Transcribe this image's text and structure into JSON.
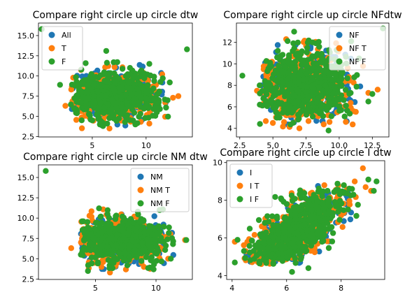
{
  "chart_data": [
    {
      "type": "scatter",
      "title": "Compare right circle up circle dtw",
      "xlabel": "",
      "ylabel": "",
      "xlim": [
        0.0,
        14.3
      ],
      "ylim": [
        2.45,
        16.55
      ],
      "xticks": [
        5,
        10
      ],
      "xtick_labels": [
        "5",
        "10"
      ],
      "yticks": [
        2.5,
        5.0,
        7.5,
        10.0,
        12.5,
        15.0
      ],
      "ytick_labels": [
        "2.5",
        "5.0",
        "7.5",
        "10.0",
        "12.5",
        "15.0"
      ],
      "legend_position": "top-left",
      "grid": false,
      "series": [
        {
          "name": "All",
          "color": "#1f77b4",
          "points": [
            [
              7.0,
              7.5
            ],
            [
              6.5,
              7.0
            ]
          ]
        },
        {
          "name": "T",
          "color": "#ff7f0e",
          "points": [
            [
              2.5,
              6.3
            ],
            [
              4.2,
              7.8
            ],
            [
              5.5,
              6.6
            ],
            [
              6.6,
              3.5
            ],
            [
              7.8,
              5.2
            ],
            [
              9.5,
              8.5
            ],
            [
              10.3,
              4.1
            ],
            [
              12.5,
              7.3
            ],
            [
              13.0,
              7.5
            ],
            [
              3.8,
              5.8
            ],
            [
              11.5,
              10.2
            ]
          ]
        },
        {
          "name": "F",
          "color": "#2ca02c",
          "points": [
            [
              0.3,
              15.8
            ],
            [
              13.8,
              13.3
            ],
            [
              2.0,
              8.9
            ],
            [
              6.3,
              13.1
            ],
            [
              10.3,
              11.5
            ],
            [
              12.2,
              9.2
            ],
            [
              3.5,
              7.2
            ],
            [
              4.5,
              9.5
            ],
            [
              12.0,
              7.0
            ],
            [
              8.5,
              11.0
            ],
            [
              5.0,
              4.5
            ],
            [
              9.0,
              4.0
            ],
            [
              11.0,
              5.5
            ],
            [
              6.0,
              3.8
            ]
          ]
        }
      ],
      "cloud": {
        "center": [
          7.0,
          7.6
        ],
        "spread": [
          2.1,
          1.45
        ],
        "x_range": [
          3.0,
          12.2
        ],
        "y_range": [
          3.4,
          11.8
        ]
      }
    },
    {
      "type": "scatter",
      "title": "Compare right circle up circle NFdtw",
      "xlabel": "",
      "ylabel": "",
      "xlim": [
        2.25,
        13.75
      ],
      "ylim": [
        3.2,
        13.8
      ],
      "xticks": [
        2.5,
        5.0,
        7.5,
        10.0,
        12.5
      ],
      "xtick_labels": [
        "2.5",
        "5.0",
        "7.5",
        "10.0",
        "12.5"
      ],
      "yticks": [
        4,
        6,
        8,
        10,
        12
      ],
      "ytick_labels": [
        "4",
        "6",
        "8",
        "10",
        "12"
      ],
      "legend_position": "top-right",
      "grid": false,
      "series": [
        {
          "name": "NF",
          "color": "#1f77b4",
          "points": [
            [
              7.5,
              8.0
            ],
            [
              7.0,
              7.6
            ]
          ]
        },
        {
          "name": "NF T",
          "color": "#ff7f0e",
          "points": [
            [
              3.8,
              7.5
            ],
            [
              4.3,
              9.5
            ],
            [
              6.0,
              12.3
            ],
            [
              7.0,
              4.0
            ],
            [
              10.5,
              4.6
            ],
            [
              12.2,
              7.3
            ],
            [
              12.9,
              7.6
            ],
            [
              5.0,
              4.5
            ],
            [
              11.8,
              9.8
            ]
          ]
        },
        {
          "name": "NF F",
          "color": "#2ca02c",
          "points": [
            [
              2.7,
              8.9
            ],
            [
              6.6,
              13.0
            ],
            [
              13.3,
              13.3
            ],
            [
              4.8,
              10.1
            ],
            [
              10.9,
              12.1
            ],
            [
              9.2,
              3.8
            ],
            [
              12.2,
              6.5
            ],
            [
              12.5,
              7.2
            ],
            [
              4.0,
              8.0
            ],
            [
              5.5,
              5.0
            ],
            [
              11.5,
              10.5
            ],
            [
              8.0,
              12.0
            ]
          ]
        }
      ],
      "cloud": {
        "center": [
          7.5,
          8.0
        ],
        "spread": [
          1.75,
          1.55
        ],
        "x_range": [
          4.0,
          11.6
        ],
        "y_range": [
          4.0,
          12.3
        ]
      }
    },
    {
      "type": "scatter",
      "title": "Compare right circle up circle NM dtw",
      "xlabel": "",
      "ylabel": "",
      "xlim": [
        0.3,
        13.0
      ],
      "ylim": [
        2.45,
        16.55
      ],
      "xticks": [
        5,
        10
      ],
      "xtick_labels": [
        "5",
        "10"
      ],
      "yticks": [
        2.5,
        5.0,
        7.5,
        10.0,
        12.5,
        15.0
      ],
      "ytick_labels": [
        "2.5",
        "5.0",
        "7.5",
        "10.0",
        "12.5",
        "15.0"
      ],
      "legend_position": "top-right",
      "grid": false,
      "series": [
        {
          "name": "NM",
          "color": "#1f77b4",
          "points": [
            [
              6.8,
              7.3
            ],
            [
              6.4,
              7.0
            ]
          ]
        },
        {
          "name": "NM T",
          "color": "#ff7f0e",
          "points": [
            [
              3.0,
              6.3
            ],
            [
              4.0,
              7.6
            ],
            [
              6.2,
              3.3
            ],
            [
              9.0,
              4.0
            ],
            [
              11.0,
              5.0
            ],
            [
              12.4,
              7.3
            ],
            [
              10.5,
              6.2
            ],
            [
              5.5,
              4.0
            ]
          ]
        },
        {
          "name": "NM F",
          "color": "#2ca02c",
          "points": [
            [
              0.9,
              15.8
            ],
            [
              4.0,
              9.6
            ],
            [
              5.3,
              11.2
            ],
            [
              6.0,
              10.5
            ],
            [
              11.4,
              6.8
            ],
            [
              12.5,
              7.3
            ],
            [
              3.8,
              5.5
            ],
            [
              8.5,
              10.8
            ],
            [
              10.3,
              11.0
            ],
            [
              9.8,
              3.7
            ],
            [
              4.4,
              4.2
            ]
          ]
        }
      ],
      "cloud": {
        "center": [
          6.8,
          7.2
        ],
        "spread": [
          1.9,
          1.3
        ],
        "x_range": [
          3.8,
          11.5
        ],
        "y_range": [
          3.4,
          11.3
        ]
      }
    },
    {
      "type": "scatter",
      "title": "Compare right circle up circle I dtw",
      "xlabel": "",
      "ylabel": "",
      "xlim": [
        3.8,
        9.6
      ],
      "ylim": [
        3.8,
        10.1
      ],
      "xticks": [
        4,
        6,
        8
      ],
      "xtick_labels": [
        "4",
        "6",
        "8"
      ],
      "yticks": [
        4,
        6,
        8,
        10
      ],
      "ytick_labels": [
        "4",
        "6",
        "8",
        "10"
      ],
      "legend_position": "top-left",
      "grid": false,
      "series": [
        {
          "name": "I",
          "color": "#1f77b4",
          "points": [
            [
              6.0,
              6.0
            ],
            [
              5.8,
              5.7
            ]
          ]
        },
        {
          "name": "I T",
          "color": "#ff7f0e",
          "points": [
            [
              8.8,
              9.7
            ],
            [
              8.9,
              8.7
            ],
            [
              9.1,
              8.5
            ],
            [
              8.5,
              9.0
            ],
            [
              4.1,
              5.8
            ],
            [
              4.5,
              5.3
            ],
            [
              7.2,
              6.2
            ],
            [
              8.0,
              7.2
            ],
            [
              6.8,
              6.3
            ],
            [
              5.5,
              4.9
            ],
            [
              7.6,
              8.1
            ]
          ]
        },
        {
          "name": "I F",
          "color": "#2ca02c",
          "points": [
            [
              4.1,
              4.7
            ],
            [
              6.2,
              4.2
            ],
            [
              6.8,
              4.4
            ],
            [
              9.3,
              9.0
            ],
            [
              9.2,
              8.5
            ],
            [
              9.0,
              9.1
            ],
            [
              7.5,
              8.5
            ],
            [
              6.5,
              7.5
            ],
            [
              5.2,
              6.8
            ],
            [
              4.2,
              5.9
            ],
            [
              7.3,
              5.8
            ],
            [
              8.1,
              8.8
            ],
            [
              8.4,
              8.6
            ]
          ]
        }
      ],
      "cloud": {
        "center": [
          6.3,
          6.3
        ],
        "spread": [
          0.85,
          0.75
        ],
        "x_range": [
          4.4,
          8.7
        ],
        "y_range": [
          4.6,
          9.0
        ],
        "slope": 0.88
      }
    }
  ]
}
